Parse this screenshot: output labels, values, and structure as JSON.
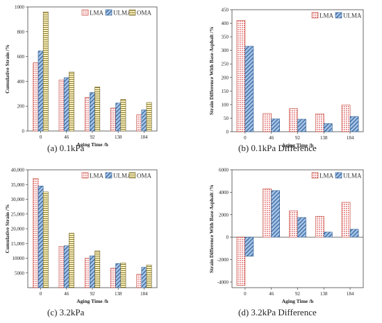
{
  "colors": {
    "LMA": "#e06666",
    "ULMA": "#4a7fb5",
    "OMA": "#d9c260"
  },
  "chart_data": [
    {
      "type": "bar",
      "caption": "(a)  0.1kPa",
      "xlabel": "Aging Time /h",
      "ylabel": "Cumulative Strain /%",
      "categories": [
        "0",
        "46",
        "92",
        "138",
        "184"
      ],
      "ylim": [
        0,
        1000
      ],
      "yticks": [
        0,
        200,
        400,
        600,
        800,
        1000
      ],
      "ytick_labels": [
        "0",
        "200",
        "400",
        "600",
        "800",
        "1000"
      ],
      "legend": "top-right",
      "series": [
        {
          "name": "LMA",
          "values": [
            550,
            410,
            270,
            185,
            130
          ]
        },
        {
          "name": "ULMA",
          "values": [
            645,
            430,
            310,
            225,
            170
          ]
        },
        {
          "name": "OMA",
          "values": [
            960,
            475,
            355,
            255,
            230
          ]
        }
      ]
    },
    {
      "type": "bar",
      "caption": "(b)  0.1kPa Difference",
      "xlabel": "Aging Time /h",
      "ylabel": "Strain Difference With Base Asphalt /%",
      "categories": [
        "0",
        "46",
        "92",
        "138",
        "184"
      ],
      "ylim": [
        0,
        450
      ],
      "yticks": [
        0,
        50,
        100,
        150,
        200,
        250,
        300,
        350,
        400,
        450
      ],
      "ytick_labels": [
        "0",
        "50",
        "100",
        "150",
        "200",
        "250",
        "300",
        "350",
        "400",
        "450"
      ],
      "legend": "top-right",
      "series": [
        {
          "name": "LMA",
          "values": [
            410,
            67,
            85,
            66,
            98
          ]
        },
        {
          "name": "ULMA",
          "values": [
            315,
            47,
            46,
            30,
            56
          ]
        }
      ]
    },
    {
      "type": "bar",
      "caption": "(c)  3.2kPa",
      "xlabel": "Aging Time /h",
      "ylabel": "Cumulative Strain /%",
      "categories": [
        "0",
        "46",
        "92",
        "138",
        "184"
      ],
      "ylim": [
        0,
        40000
      ],
      "yticks": [
        5000,
        10000,
        15000,
        20000,
        25000,
        30000,
        35000,
        40000
      ],
      "ytick_labels": [
        "5000",
        "10000",
        "15,000",
        "20,000",
        "25,000",
        "30,000",
        "35,000",
        "40,000"
      ],
      "legend": "top-right",
      "series": [
        {
          "name": "LMA",
          "values": [
            37000,
            14000,
            10000,
            6600,
            4500
          ]
        },
        {
          "name": "ULMA",
          "values": [
            34500,
            14200,
            10800,
            8200,
            6900
          ]
        },
        {
          "name": "OMA",
          "values": [
            32500,
            18500,
            12500,
            8400,
            7700
          ]
        }
      ]
    },
    {
      "type": "bar",
      "caption": "(d)  3.2kPa Difference",
      "xlabel": "Aging Time /h",
      "ylabel": "Strain Difference With Base Asphalt /%",
      "categories": [
        "0",
        "46",
        "92",
        "138",
        "184"
      ],
      "ylim": [
        -4500,
        6000
      ],
      "yticks": [
        -4000,
        -2000,
        0,
        2000,
        4000,
        6000
      ],
      "ytick_labels": [
        "-4000",
        "-2000",
        "0",
        "2000",
        "4000",
        "6000"
      ],
      "legend": "top-right",
      "series": [
        {
          "name": "LMA",
          "values": [
            -4300,
            4300,
            2350,
            1850,
            3100
          ]
        },
        {
          "name": "ULMA",
          "values": [
            -1700,
            4150,
            1750,
            450,
            700
          ]
        }
      ]
    }
  ]
}
